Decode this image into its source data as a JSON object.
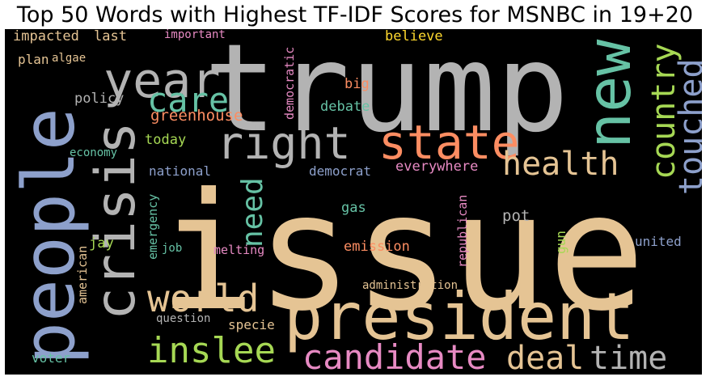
{
  "title": "Top 50 Words with Highest TF-IDF Scores for MSNBC in 19+20",
  "palette": {
    "background": "#000000",
    "gray": "#b3b3b3",
    "tan": "#e5c494",
    "blue": "#8da0cb",
    "teal": "#66c2a5",
    "orange": "#fc8d62",
    "green": "#a6d854",
    "pink": "#e78ac3",
    "yellow": "#ffd92f"
  },
  "words": [
    {
      "text": "issue",
      "color": "tan"
    },
    {
      "text": "trump",
      "color": "gray"
    },
    {
      "text": "president",
      "color": "tan"
    },
    {
      "text": "people",
      "color": "blue"
    },
    {
      "text": "crisis",
      "color": "gray"
    },
    {
      "text": "new",
      "color": "teal"
    },
    {
      "text": "year",
      "color": "gray"
    },
    {
      "text": "right",
      "color": "gray"
    },
    {
      "text": "state",
      "color": "orange"
    },
    {
      "text": "country",
      "color": "green"
    },
    {
      "text": "touched",
      "color": "blue"
    },
    {
      "text": "health",
      "color": "tan"
    },
    {
      "text": "care",
      "color": "teal"
    },
    {
      "text": "world",
      "color": "tan"
    },
    {
      "text": "inslee",
      "color": "green"
    },
    {
      "text": "candidate",
      "color": "pink"
    },
    {
      "text": "deal",
      "color": "tan"
    },
    {
      "text": "time",
      "color": "gray"
    },
    {
      "text": "need",
      "color": "teal"
    },
    {
      "text": "greenhouse",
      "color": "orange"
    },
    {
      "text": "policy",
      "color": "gray"
    },
    {
      "text": "today",
      "color": "green"
    },
    {
      "text": "national",
      "color": "blue"
    },
    {
      "text": "democrat",
      "color": "blue"
    },
    {
      "text": "everywhere",
      "color": "pink"
    },
    {
      "text": "believe",
      "color": "yellow"
    },
    {
      "text": "big",
      "color": "orange"
    },
    {
      "text": "debate",
      "color": "teal"
    },
    {
      "text": "democratic",
      "color": "pink"
    },
    {
      "text": "impacted",
      "color": "tan"
    },
    {
      "text": "last",
      "color": "tan"
    },
    {
      "text": "important",
      "color": "pink"
    },
    {
      "text": "plan",
      "color": "tan"
    },
    {
      "text": "algae",
      "color": "tan"
    },
    {
      "text": "economy",
      "color": "teal"
    },
    {
      "text": "gas",
      "color": "teal"
    },
    {
      "text": "pot",
      "color": "gray"
    },
    {
      "text": "emergency",
      "color": "teal"
    },
    {
      "text": "jay",
      "color": "green"
    },
    {
      "text": "job",
      "color": "teal"
    },
    {
      "text": "melting",
      "color": "pink"
    },
    {
      "text": "emission",
      "color": "orange"
    },
    {
      "text": "republican",
      "color": "pink"
    },
    {
      "text": "gun",
      "color": "green"
    },
    {
      "text": "united",
      "color": "blue"
    },
    {
      "text": "american",
      "color": "tan"
    },
    {
      "text": "administration",
      "color": "tan"
    },
    {
      "text": "question",
      "color": "gray"
    },
    {
      "text": "specie",
      "color": "tan"
    },
    {
      "text": "voter",
      "color": "teal"
    }
  ]
}
